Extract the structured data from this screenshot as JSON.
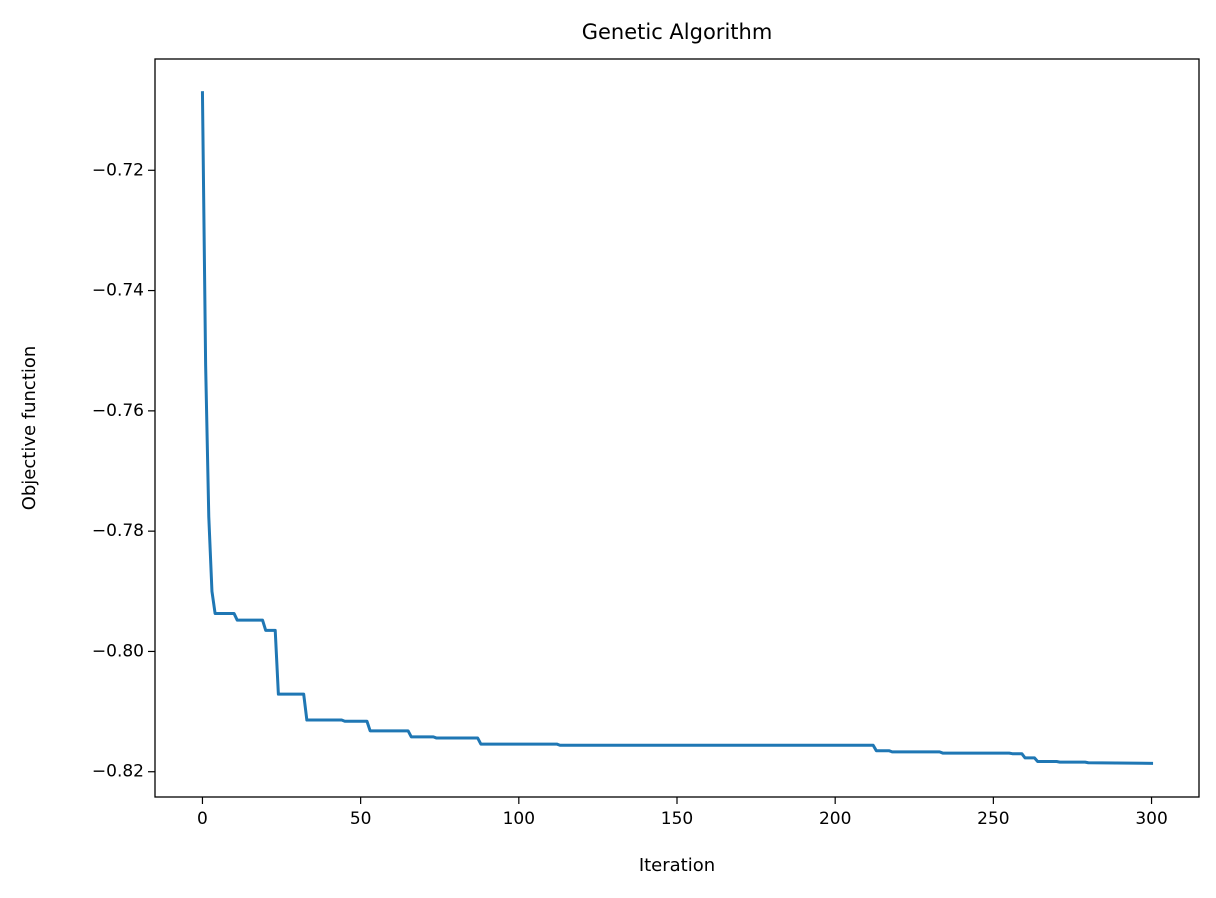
{
  "chart_data": {
    "type": "line",
    "title": "Genetic Algorithm",
    "x_label": "Iteration",
    "y_label": "Objective function",
    "x": [
      0,
      1,
      2,
      3,
      4,
      10,
      11,
      19,
      20,
      23,
      24,
      32,
      33,
      44,
      45,
      52,
      53,
      65,
      66,
      73,
      74,
      87,
      88,
      112,
      113,
      212,
      213,
      217,
      218,
      233,
      234,
      255,
      256,
      259,
      260,
      263,
      264,
      270,
      271,
      279,
      280,
      300
    ],
    "values": [
      -0.7071,
      -0.7523,
      -0.7776,
      -0.79,
      -0.7937,
      -0.7937,
      -0.7948,
      -0.7948,
      -0.7965,
      -0.7965,
      -0.8071,
      -0.8071,
      -0.8114,
      -0.8114,
      -0.8116,
      -0.8116,
      -0.8132,
      -0.8132,
      -0.8142,
      -0.8142,
      -0.8144,
      -0.8144,
      -0.8154,
      -0.8154,
      -0.8156,
      -0.8156,
      -0.8165,
      -0.8165,
      -0.8167,
      -0.8167,
      -0.8169,
      -0.8169,
      -0.817,
      -0.817,
      -0.8177,
      -0.8177,
      -0.8183,
      -0.8183,
      -0.8184,
      -0.8184,
      -0.8185,
      -0.8186
    ],
    "color": "#1f77b4",
    "xlim": [
      -15,
      315
    ],
    "xticks": [
      0,
      50,
      100,
      150,
      200,
      250,
      300
    ],
    "ylim": [
      -0.8242,
      -0.7015
    ],
    "yticks": [
      {
        "value": -0.82,
        "label": "−0.82"
      },
      {
        "value": -0.8,
        "label": "−0.80"
      },
      {
        "value": -0.78,
        "label": "−0.78"
      },
      {
        "value": -0.76,
        "label": "−0.76"
      },
      {
        "value": -0.74,
        "label": "−0.74"
      },
      {
        "value": -0.72,
        "label": "−0.72"
      }
    ],
    "grid": false
  }
}
